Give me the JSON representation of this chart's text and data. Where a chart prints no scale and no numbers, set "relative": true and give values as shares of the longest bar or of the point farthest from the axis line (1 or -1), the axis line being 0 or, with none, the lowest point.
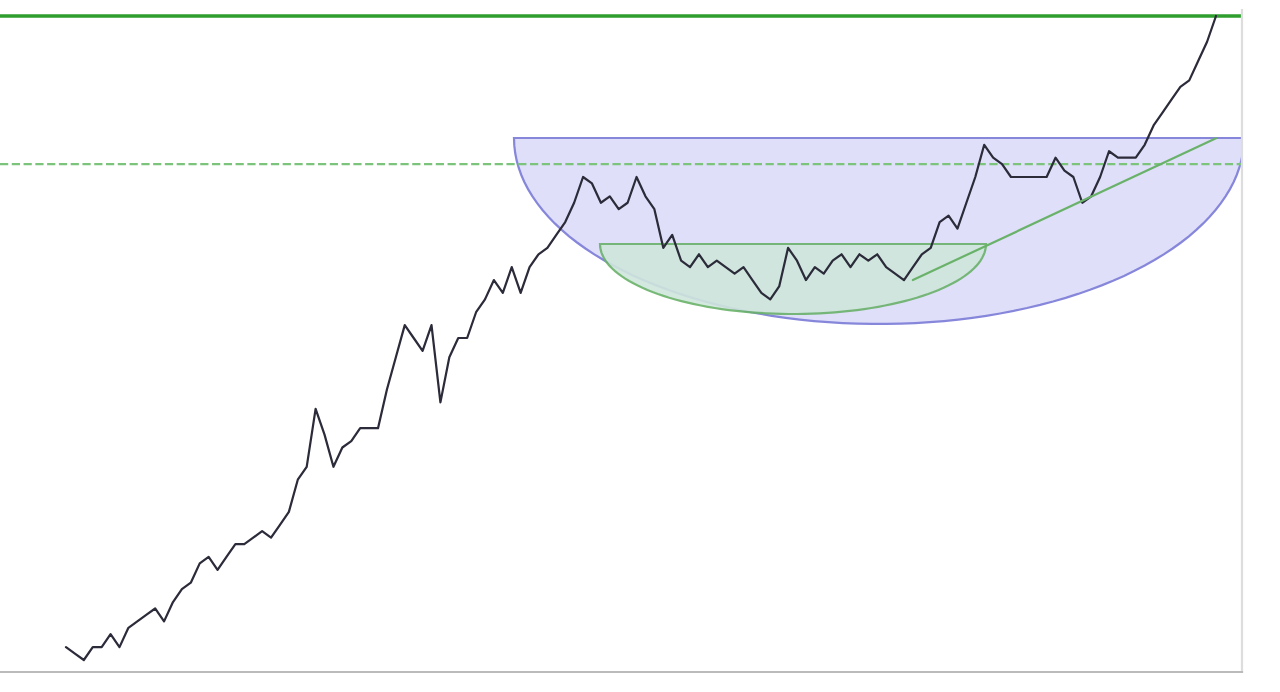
{
  "chart_data": {
    "type": "line",
    "relative": true,
    "tick_labels": false,
    "grid": false,
    "legend": false,
    "categories": [
      null,
      null,
      null,
      null,
      null,
      null,
      null,
      null,
      null,
      null,
      null,
      null,
      null,
      null,
      null,
      null,
      null,
      null,
      null,
      null,
      null,
      null,
      null,
      null,
      null,
      null,
      null,
      null,
      null,
      null,
      null,
      null,
      null,
      null,
      null,
      null,
      null,
      null,
      null,
      null,
      null,
      null,
      null,
      null,
      null,
      null,
      null,
      null,
      null,
      null,
      null,
      null,
      null,
      null,
      null,
      null,
      null,
      null,
      null,
      null,
      null,
      null,
      null,
      null,
      null,
      null,
      null,
      null,
      null,
      null,
      null,
      null,
      null,
      null,
      null,
      null,
      null,
      null,
      null,
      null,
      null,
      null,
      null,
      null,
      null,
      null,
      null,
      null,
      null,
      null,
      null,
      null,
      null,
      null,
      null,
      null,
      null,
      null,
      null,
      null,
      null,
      null,
      null,
      null,
      null,
      null,
      null,
      null,
      null,
      null,
      null,
      null,
      null,
      null,
      null,
      null,
      null,
      null,
      null,
      null,
      null,
      null,
      null,
      null,
      null,
      null,
      null,
      null,
      null,
      null
    ],
    "series": [
      {
        "color": "#2b2b3a",
        "values": [
          0.02,
          0.01,
          0,
          0.02,
          0.02,
          0.04,
          0.02,
          0.05,
          0.06,
          0.07,
          0.08,
          0.06,
          0.09,
          0.11,
          0.12,
          0.15,
          0.16,
          0.14,
          0.16,
          0.18,
          0.18,
          0.19,
          0.2,
          0.19,
          0.21,
          0.23,
          0.28,
          0.3,
          0.39,
          0.35,
          0.3,
          0.33,
          0.34,
          0.36,
          0.36,
          0.36,
          0.42,
          0.47,
          0.52,
          0.5,
          0.48,
          0.52,
          0.4,
          0.47,
          0.5,
          0.5,
          0.54,
          0.56,
          0.59,
          0.57,
          0.61,
          0.57,
          0.61,
          0.63,
          0.64,
          0.66,
          0.68,
          0.71,
          0.75,
          0.74,
          0.71,
          0.72,
          0.7,
          0.71,
          0.75,
          0.72,
          0.7,
          0.64,
          0.66,
          0.62,
          0.61,
          0.63,
          0.61,
          0.62,
          0.61,
          0.6,
          0.61,
          0.59,
          0.57,
          0.56,
          0.58,
          0.64,
          0.62,
          0.59,
          0.61,
          0.6,
          0.62,
          0.63,
          0.61,
          0.63,
          0.62,
          0.63,
          0.61,
          0.6,
          0.59,
          0.61,
          0.63,
          0.64,
          0.68,
          0.69,
          0.67,
          0.71,
          0.75,
          0.8,
          0.78,
          0.77,
          0.75,
          0.75,
          0.75,
          0.75,
          0.75,
          0.78,
          0.76,
          0.75,
          0.71,
          0.72,
          0.75,
          0.79,
          0.78,
          0.78,
          0.78,
          0.8,
          0.83,
          0.85,
          0.87,
          0.89,
          0.9,
          0.93,
          0.96,
          1
        ]
      },
      {
        "color": "#6ab26a",
        "values": [
          null,
          null,
          null,
          null,
          null,
          null,
          null,
          null,
          null,
          null,
          null,
          null,
          null,
          null,
          null,
          null,
          null,
          null,
          null,
          null,
          null,
          null,
          null,
          null,
          null,
          null,
          null,
          null,
          null,
          null,
          null,
          null,
          null,
          null,
          null,
          null,
          null,
          null,
          null,
          null,
          null,
          null,
          null,
          null,
          null,
          null,
          null,
          null,
          null,
          null,
          null,
          null,
          null,
          null,
          null,
          null,
          null,
          null,
          null,
          null,
          null,
          null,
          null,
          null,
          null,
          null,
          null,
          null,
          null,
          null,
          null,
          null,
          null,
          null,
          null,
          null,
          null,
          null,
          null,
          null,
          null,
          null,
          null,
          null,
          null,
          null,
          null,
          null,
          null,
          null,
          null,
          null,
          null,
          null,
          null,
          0.59,
          null,
          null,
          null,
          null,
          null,
          null,
          null,
          null,
          null,
          null,
          null,
          null,
          null,
          null,
          null,
          null,
          null,
          null,
          null,
          null,
          null,
          null,
          null,
          null,
          null,
          null,
          null,
          null,
          null,
          null,
          null,
          null,
          null,
          0.81
        ]
      }
    ],
    "ref_lines": [
      {
        "axis": "y",
        "value": 0.77,
        "color": "#7cc47c",
        "line_style": "dashed"
      },
      {
        "axis": "y",
        "value": 1,
        "color": "#2e9e2e",
        "line_style": "solid"
      }
    ]
  }
}
